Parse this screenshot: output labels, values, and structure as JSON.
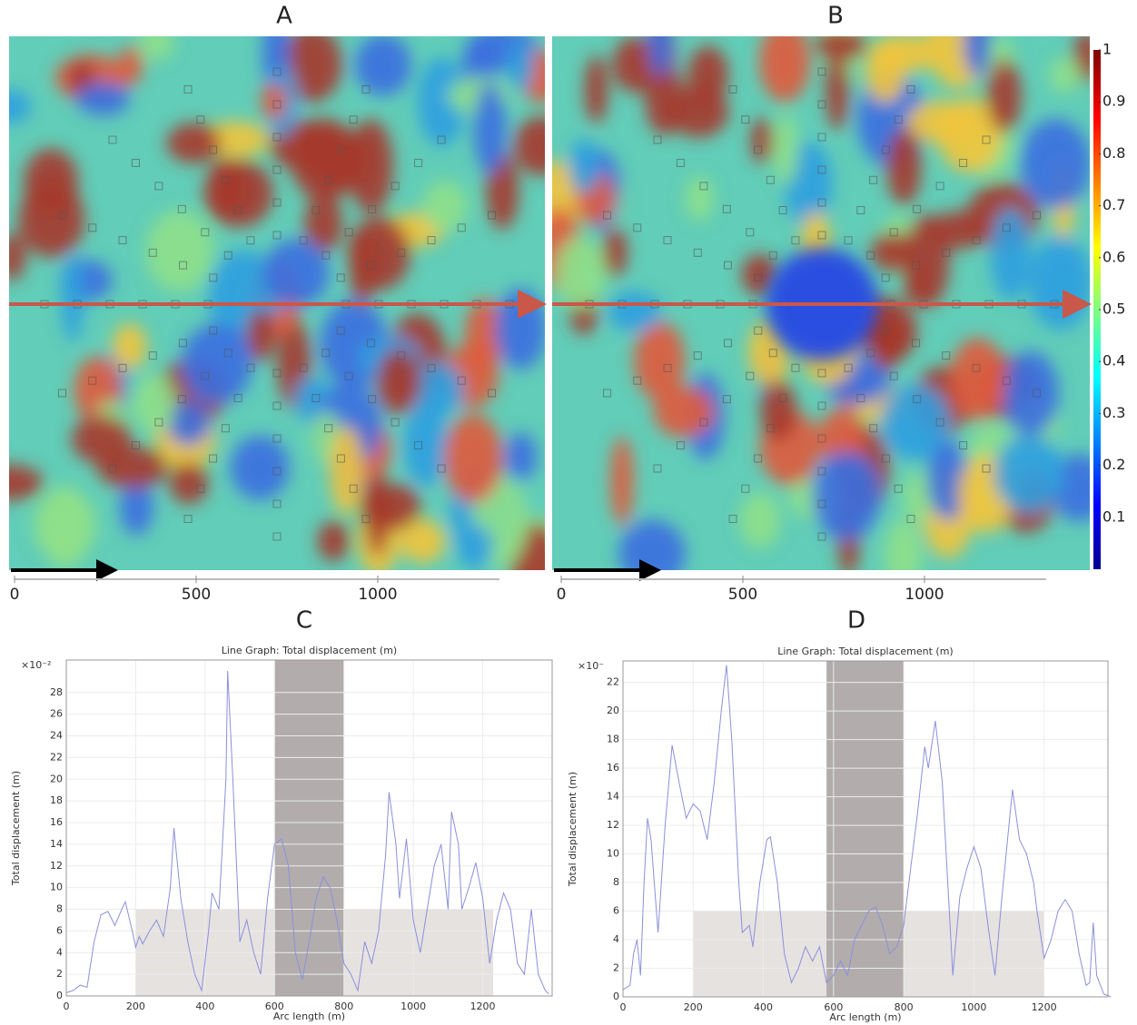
{
  "chart_data": [
    {
      "type": "heatmap",
      "panel": "A",
      "xlim": [
        0,
        1335
      ],
      "xticks": [
        0,
        500,
        1000
      ]
    },
    {
      "type": "heatmap",
      "panel": "B",
      "xlim": [
        0,
        1335
      ],
      "xticks": [
        0,
        500,
        1000
      ],
      "colorbar": {
        "ylim": [
          0,
          1
        ],
        "ticks": [
          0.1,
          0.2,
          0.3,
          0.4,
          0.5,
          0.6,
          0.7,
          0.8,
          0.9,
          1
        ]
      }
    },
    {
      "type": "line",
      "panel": "C",
      "title": "Line Graph: Total displacement (m)",
      "x_label": "Arc length (m)",
      "y_label": "Total displacement (m)",
      "multiplier": "×10⁻²",
      "xlim": [
        0,
        1400
      ],
      "xticks": [
        0,
        200,
        400,
        600,
        800,
        1000,
        1200
      ],
      "ylim": [
        0,
        31
      ],
      "yticks": [
        0,
        2,
        4,
        6,
        8,
        10,
        12,
        14,
        16,
        18,
        20,
        22,
        24,
        26,
        28
      ],
      "grid": true,
      "bands": [
        {
          "x0": 200,
          "x1": 1230,
          "top": 8,
          "color": "#e6e2e0"
        },
        {
          "x0": 600,
          "x1": 800,
          "top": 31,
          "color": "#b2adac"
        }
      ],
      "x": [
        0,
        20,
        40,
        60,
        80,
        100,
        120,
        140,
        160,
        170,
        190,
        200,
        210,
        220,
        240,
        260,
        280,
        300,
        310,
        330,
        350,
        370,
        390,
        410,
        420,
        440,
        460,
        465,
        480,
        500,
        520,
        540,
        560,
        580,
        600,
        620,
        640,
        660,
        680,
        700,
        720,
        740,
        760,
        780,
        800,
        820,
        840,
        860,
        880,
        900,
        920,
        930,
        950,
        960,
        980,
        1000,
        1020,
        1040,
        1060,
        1080,
        1100,
        1110,
        1130,
        1140,
        1160,
        1180,
        1200,
        1220,
        1240,
        1260,
        1280,
        1300,
        1320,
        1340,
        1360,
        1380,
        1390
      ],
      "series": [
        {
          "color": "#8a90dc",
          "values": [
            0.3,
            0.5,
            1,
            0.8,
            5,
            7.5,
            7.8,
            6.5,
            8,
            8.7,
            6,
            4.5,
            5.5,
            4.8,
            6,
            7,
            5.5,
            10,
            15.5,
            9,
            5,
            2,
            0.5,
            6,
            9.5,
            8,
            20,
            30,
            20,
            5,
            7,
            4,
            2,
            9,
            14,
            14.5,
            12,
            4,
            1.5,
            5,
            9,
            11,
            10,
            7,
            3,
            2,
            0.5,
            5,
            3,
            6,
            13,
            18.8,
            14,
            9,
            14.5,
            7,
            4,
            8,
            12,
            14,
            8,
            17,
            14,
            8,
            10,
            12.3,
            9,
            3,
            7,
            9.5,
            8,
            3,
            2,
            8,
            2,
            0.5,
            0.2
          ]
        }
      ]
    },
    {
      "type": "line",
      "panel": "D",
      "title": "Line Graph: Total displacement (m)",
      "x_label": "Arc length (m)",
      "y_label": "Total displacement (m)",
      "multiplier": "×10⁻",
      "xlim": [
        0,
        1382
      ],
      "xticks": [
        0,
        200,
        400,
        600,
        800,
        1000,
        1200
      ],
      "ylim": [
        0,
        23.5
      ],
      "yticks": [
        0,
        2,
        4,
        6,
        8,
        10,
        12,
        14,
        16,
        18,
        20,
        22
      ],
      "grid": true,
      "bands": [
        {
          "x0": 200,
          "x1": 1200,
          "top": 6,
          "color": "#e6e2e0"
        },
        {
          "x0": 580,
          "x1": 800,
          "top": 23.5,
          "color": "#b2adac"
        }
      ],
      "x": [
        0,
        20,
        30,
        40,
        50,
        60,
        70,
        80,
        100,
        120,
        140,
        160,
        180,
        200,
        220,
        240,
        260,
        280,
        295,
        310,
        330,
        340,
        360,
        370,
        390,
        410,
        420,
        440,
        460,
        480,
        500,
        520,
        540,
        560,
        580,
        600,
        620,
        640,
        660,
        700,
        720,
        740,
        760,
        780,
        800,
        820,
        840,
        860,
        870,
        890,
        910,
        930,
        940,
        960,
        980,
        1000,
        1020,
        1040,
        1060,
        1080,
        1100,
        1110,
        1130,
        1150,
        1170,
        1180,
        1200,
        1220,
        1240,
        1260,
        1280,
        1300,
        1320,
        1330,
        1340,
        1350,
        1370,
        1390
      ],
      "series": [
        {
          "color": "#8a90dc",
          "values": [
            0.5,
            0.8,
            3,
            4,
            1.5,
            8,
            12.5,
            11,
            4.5,
            12,
            17.6,
            15,
            12.5,
            13.5,
            13,
            11,
            15,
            20,
            23.2,
            18,
            8,
            4.5,
            5,
            3.5,
            8,
            11,
            11.2,
            8,
            3,
            1,
            2,
            3.5,
            2.5,
            3.5,
            1,
            1.5,
            2.5,
            1.5,
            4,
            6,
            6.3,
            5,
            3,
            3.5,
            5,
            9,
            13,
            17.5,
            16,
            19.3,
            15,
            6,
            1.5,
            7,
            9,
            10.5,
            9,
            5,
            1.5,
            7,
            12,
            14.5,
            11,
            10,
            8,
            6,
            2.7,
            4,
            6,
            6.8,
            6,
            3,
            0.8,
            1,
            5.2,
            1.5,
            0.2,
            0
          ]
        }
      ]
    }
  ]
}
